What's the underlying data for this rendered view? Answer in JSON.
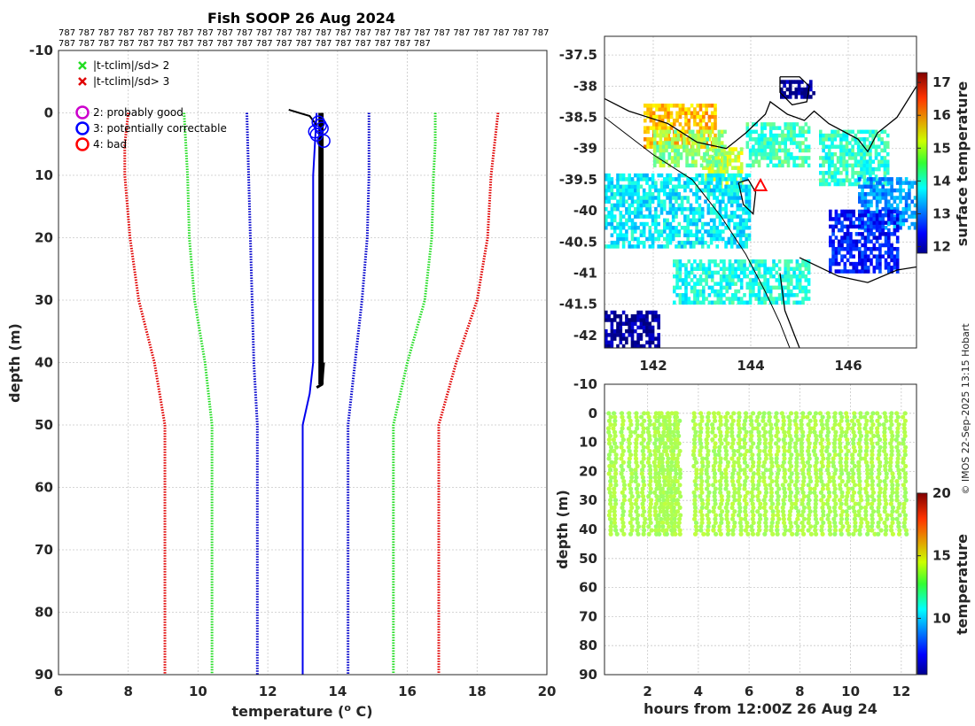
{
  "credit": "© IMOS 22-Sep-2025 13:15 Hobart",
  "colors": {
    "climate_3sd": "#e00000",
    "climate_2sd": "#22dd22",
    "climate_1sd": "#0000cc",
    "profile": "#0000ee",
    "highlight": "#000000",
    "flag_good": "#cc00cc",
    "flag_correctable": "#0000ff",
    "flag_bad": "#ff0000",
    "section_points": "#33dd11"
  },
  "chart_data": [
    {
      "id": "profile",
      "type": "line",
      "title": "Fish SOOP 26 Aug 2024",
      "code_rows": [
        "787 787 787 787 787 787 787 787 787 787 787 787 787 787 787 787 787 787 787 787 787 787 787 787 787",
        "787 787 787 787 787 787 787 787 787 787 787 787 787 787 787 787 787 787 787"
      ],
      "xlabel": "temperature (",
      "xlabel_sup": "o",
      "xlabel_tail": " C)",
      "ylabel": "depth (m)",
      "xlim": [
        6,
        20
      ],
      "ylim": [
        -10,
        90
      ],
      "y_reversed": true,
      "xticks": [
        "6",
        "8",
        "10",
        "12",
        "14",
        "16",
        "18",
        "20"
      ],
      "yticks": [
        "-10",
        "0",
        "10",
        "20",
        "30",
        "40",
        "50",
        "60",
        "70",
        "80",
        "90"
      ],
      "legend_cross": [
        {
          "label": "|t-tclim|/sd> 2",
          "color": "#22dd22"
        },
        {
          "label": "|t-tclim|/sd> 3",
          "color": "#e00000"
        }
      ],
      "legend_flags": [
        {
          "label": "2: probably good",
          "color": "#cc00cc"
        },
        {
          "label": "3: potentially correctable",
          "color": "#0000ff"
        },
        {
          "label": "4: bad",
          "color": "#ff0000"
        }
      ],
      "climatology": [
        {
          "name": "clim -3sd",
          "color": "#e00000",
          "points": [
            [
              8.0,
              0
            ],
            [
              7.9,
              5
            ],
            [
              7.9,
              10
            ],
            [
              8.05,
              20
            ],
            [
              8.3,
              30
            ],
            [
              8.75,
              40
            ],
            [
              9.05,
              50
            ],
            [
              9.05,
              60
            ],
            [
              9.05,
              70
            ],
            [
              9.05,
              80
            ],
            [
              9.05,
              90
            ]
          ]
        },
        {
          "name": "clim -2sd",
          "color": "#22dd22",
          "points": [
            [
              9.6,
              0
            ],
            [
              9.65,
              5
            ],
            [
              9.7,
              10
            ],
            [
              9.75,
              20
            ],
            [
              9.9,
              30
            ],
            [
              10.2,
              40
            ],
            [
              10.4,
              50
            ],
            [
              10.4,
              60
            ],
            [
              10.4,
              70
            ],
            [
              10.4,
              80
            ],
            [
              10.4,
              90
            ]
          ]
        },
        {
          "name": "clim -1sd",
          "color": "#0000cc",
          "points": [
            [
              11.4,
              0
            ],
            [
              11.45,
              10
            ],
            [
              11.5,
              20
            ],
            [
              11.55,
              30
            ],
            [
              11.6,
              40
            ],
            [
              11.7,
              50
            ],
            [
              11.7,
              60
            ],
            [
              11.7,
              70
            ],
            [
              11.7,
              80
            ],
            [
              11.7,
              90
            ]
          ]
        },
        {
          "name": "clim +1sd",
          "color": "#0000cc",
          "points": [
            [
              14.9,
              0
            ],
            [
              14.9,
              10
            ],
            [
              14.85,
              20
            ],
            [
              14.7,
              30
            ],
            [
              14.5,
              40
            ],
            [
              14.3,
              50
            ],
            [
              14.3,
              60
            ],
            [
              14.3,
              70
            ],
            [
              14.3,
              80
            ],
            [
              14.3,
              90
            ]
          ]
        },
        {
          "name": "clim +2sd",
          "color": "#22dd22",
          "points": [
            [
              16.8,
              0
            ],
            [
              16.8,
              5
            ],
            [
              16.75,
              10
            ],
            [
              16.7,
              20
            ],
            [
              16.5,
              30
            ],
            [
              16.0,
              40
            ],
            [
              15.6,
              50
            ],
            [
              15.6,
              60
            ],
            [
              15.6,
              70
            ],
            [
              15.6,
              80
            ],
            [
              15.6,
              90
            ]
          ]
        },
        {
          "name": "clim +3sd",
          "color": "#e00000",
          "points": [
            [
              18.6,
              0
            ],
            [
              18.5,
              5
            ],
            [
              18.4,
              10
            ],
            [
              18.3,
              20
            ],
            [
              18.0,
              30
            ],
            [
              17.4,
              40
            ],
            [
              16.9,
              50
            ],
            [
              16.9,
              60
            ],
            [
              16.9,
              70
            ],
            [
              16.9,
              80
            ],
            [
              16.9,
              90
            ]
          ]
        }
      ],
      "profile_line": {
        "color": "#0000ee",
        "points": [
          [
            13.4,
            0
          ],
          [
            13.35,
            5
          ],
          [
            13.3,
            10
          ],
          [
            13.3,
            20
          ],
          [
            13.3,
            30
          ],
          [
            13.3,
            40
          ],
          [
            13.2,
            45
          ],
          [
            13.0,
            50
          ],
          [
            13.0,
            60
          ],
          [
            13.0,
            70
          ],
          [
            13.0,
            80
          ],
          [
            13.0,
            90
          ]
        ]
      },
      "black_band": {
        "color": "#000000",
        "x_range": [
          13.45,
          13.6
        ],
        "depth_range": [
          0,
          43.5
        ],
        "tail": [
          [
            12.6,
            -0.5
          ],
          [
            13.2,
            0.5
          ],
          [
            13.4,
            2
          ]
        ],
        "lower_tail": [
          [
            13.6,
            40
          ],
          [
            13.55,
            43.5
          ],
          [
            13.4,
            44
          ]
        ]
      },
      "flag_circles": [
        [
          13.45,
          1.5
        ],
        [
          13.55,
          2.5
        ],
        [
          13.4,
          3.5
        ],
        [
          13.6,
          4.5
        ],
        [
          13.5,
          2.0
        ],
        [
          13.35,
          3.0
        ]
      ]
    },
    {
      "id": "map",
      "type": "heatmap",
      "xlim": [
        141,
        147.4
      ],
      "ylim": [
        -42.2,
        -37.2
      ],
      "xticks": [
        "142",
        "144",
        "146"
      ],
      "yticks": [
        "-37.5",
        "-38",
        "-38.5",
        "-39",
        "-39.5",
        "-40",
        "-40.5",
        "-41",
        "-41.5",
        "-42"
      ],
      "colorbar_label": "surface temperature",
      "colorbar_range": [
        11.8,
        17.3
      ],
      "colorbar_ticks": [
        "12",
        "13",
        "14",
        "15",
        "16",
        "17"
      ],
      "marker": {
        "lon": 144.2,
        "lat": -39.6,
        "label": "triangle"
      },
      "patches": [
        {
          "lon": [
            141.8,
            143.3
          ],
          "lat": [
            -38.3,
            -39.0
          ],
          "value": 15.6
        },
        {
          "lon": [
            143.0,
            143.8
          ],
          "lat": [
            -39.0,
            -39.7
          ],
          "value": 15.0
        },
        {
          "lon": [
            142.0,
            143.5
          ],
          "lat": [
            -38.7,
            -39.3
          ],
          "value": 14.6
        },
        {
          "lon": [
            143.9,
            145.2
          ],
          "lat": [
            -38.6,
            -39.3
          ],
          "value": 14.2
        },
        {
          "lon": [
            145.4,
            146.8
          ],
          "lat": [
            -38.7,
            -39.6
          ],
          "value": 14.1
        },
        {
          "lon": [
            146.2,
            147.4
          ],
          "lat": [
            -39.5,
            -40.3
          ],
          "value": 13.3
        },
        {
          "lon": [
            145.6,
            147.0
          ],
          "lat": [
            -40.0,
            -41.0
          ],
          "value": 12.6
        },
        {
          "lon": [
            144.6,
            145.3
          ],
          "lat": [
            -37.9,
            -38.2
          ],
          "value": 11.9
        },
        {
          "lon": [
            141.0,
            142.1
          ],
          "lat": [
            -41.6,
            -42.2
          ],
          "value": 11.9
        },
        {
          "lon": [
            141.0,
            144.0
          ],
          "lat": [
            -39.4,
            -40.6
          ],
          "value": 13.8
        },
        {
          "lon": [
            142.4,
            145.2
          ],
          "lat": [
            -40.8,
            -41.5
          ],
          "value": 14.0
        }
      ],
      "coast": [
        [
          [
            141.0,
            -38.2
          ],
          [
            141.5,
            -38.4
          ],
          [
            142.3,
            -38.6
          ],
          [
            142.9,
            -38.9
          ],
          [
            143.5,
            -39.0
          ],
          [
            143.9,
            -38.75
          ],
          [
            144.3,
            -38.45
          ],
          [
            144.4,
            -38.25
          ],
          [
            144.75,
            -38.45
          ],
          [
            145.1,
            -38.55
          ],
          [
            145.3,
            -38.4
          ],
          [
            145.6,
            -38.6
          ],
          [
            146.2,
            -38.85
          ],
          [
            146.4,
            -39.05
          ],
          [
            146.6,
            -38.75
          ],
          [
            147.0,
            -38.5
          ],
          [
            147.4,
            -38.0
          ]
        ],
        [
          [
            143.75,
            -39.55
          ],
          [
            143.85,
            -39.9
          ],
          [
            144.05,
            -40.05
          ],
          [
            144.1,
            -39.7
          ],
          [
            143.95,
            -39.5
          ],
          [
            143.75,
            -39.55
          ]
        ],
        [
          [
            145.0,
            -40.75
          ],
          [
            145.8,
            -41.05
          ],
          [
            146.4,
            -41.15
          ],
          [
            147.0,
            -40.95
          ],
          [
            147.4,
            -40.9
          ]
        ],
        [
          [
            144.6,
            -41.0
          ],
          [
            144.7,
            -41.6
          ],
          [
            145.0,
            -42.2
          ]
        ],
        [
          [
            144.6,
            -37.85
          ],
          [
            145.0,
            -37.85
          ],
          [
            145.2,
            -38.0
          ],
          [
            145.15,
            -38.25
          ],
          [
            144.85,
            -38.3
          ],
          [
            144.6,
            -38.1
          ],
          [
            144.6,
            -37.85
          ]
        ]
      ],
      "depth_contours": [
        [
          [
            141.0,
            -38.5
          ],
          [
            142.0,
            -39.1
          ],
          [
            142.8,
            -39.5
          ],
          [
            143.4,
            -40.1
          ],
          [
            143.9,
            -40.7
          ],
          [
            144.3,
            -41.3
          ],
          [
            144.6,
            -41.8
          ],
          [
            144.8,
            -42.2
          ]
        ]
      ]
    },
    {
      "id": "section",
      "type": "scatter",
      "xlabel": "hours from 12:00Z 26 Aug 24",
      "ylabel": "depth (m)",
      "xlim": [
        0.3,
        12.6
      ],
      "ylim": [
        -10,
        90
      ],
      "y_reversed": true,
      "xticks": [
        "2",
        "4",
        "6",
        "8",
        "10",
        "12"
      ],
      "yticks": [
        "-10",
        "0",
        "10",
        "20",
        "30",
        "40",
        "50",
        "60",
        "70",
        "80",
        "90"
      ],
      "colorbar_label": "temperature",
      "colorbar_range": [
        5.5,
        20
      ],
      "colorbar_ticks": [
        "10",
        "15",
        "20"
      ],
      "profile_times": [
        0.5,
        0.7,
        1.0,
        1.3,
        1.55,
        1.8,
        2.05,
        2.3,
        2.45,
        2.6,
        2.75,
        2.9,
        3.05,
        3.2,
        3.85,
        4.1,
        4.35,
        4.6,
        4.85,
        5.1,
        5.35,
        5.6,
        5.85,
        6.1,
        6.35,
        6.6,
        6.85,
        7.1,
        7.35,
        7.6,
        7.85,
        8.1,
        8.35,
        8.6,
        8.85,
        9.1,
        9.35,
        9.6,
        9.85,
        10.1,
        10.35,
        10.6,
        10.85,
        11.1,
        11.35,
        11.6,
        11.85,
        12.1
      ],
      "max_depth": 42,
      "point_temp": 13.4
    }
  ]
}
